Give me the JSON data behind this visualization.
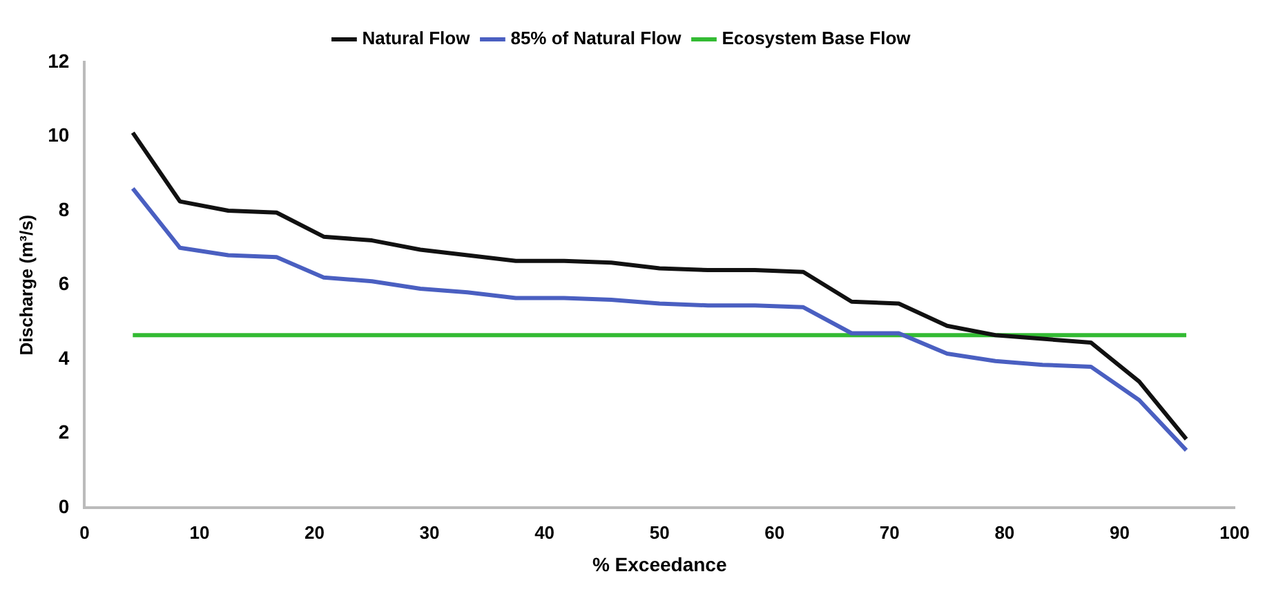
{
  "chart_data": {
    "type": "line",
    "xlabel": "% Exceedance",
    "ylabel": "Discharge (m³/s)",
    "x": [
      4.2,
      8.3,
      12.5,
      16.7,
      20.8,
      25,
      29.2,
      33.3,
      37.5,
      41.7,
      45.8,
      50,
      54.2,
      58.3,
      62.5,
      66.7,
      70.8,
      75,
      79.2,
      83.3,
      87.5,
      91.7,
      95.8
    ],
    "series": [
      {
        "name": "Natural Flow",
        "color": "#111111",
        "values": [
          10.1,
          8.25,
          8.0,
          7.95,
          7.3,
          7.2,
          6.95,
          6.8,
          6.65,
          6.65,
          6.6,
          6.45,
          6.4,
          6.4,
          6.35,
          5.55,
          5.5,
          4.9,
          4.65,
          4.55,
          4.45,
          3.4,
          1.85
        ]
      },
      {
        "name": "85% of Natural Flow",
        "color": "#4a5fc1",
        "values": [
          8.6,
          7.0,
          6.8,
          6.75,
          6.2,
          6.1,
          5.9,
          5.8,
          5.65,
          5.65,
          5.6,
          5.5,
          5.45,
          5.45,
          5.4,
          4.7,
          4.7,
          4.15,
          3.95,
          3.85,
          3.8,
          2.9,
          1.55
        ]
      },
      {
        "name": "Ecosystem Base Flow",
        "color": "#33bb33",
        "x": [
          4.2,
          95.8
        ],
        "values": [
          4.65,
          4.65
        ]
      }
    ],
    "xlim": [
      0,
      100
    ],
    "xticks": [
      0,
      10,
      20,
      30,
      40,
      50,
      60,
      70,
      80,
      90,
      100
    ],
    "ylim": [
      0,
      12
    ],
    "yticks": [
      0,
      2,
      4,
      6,
      8,
      10,
      12
    ],
    "grid": false,
    "legend": "top",
    "marker": "none",
    "line_style": "solid"
  }
}
